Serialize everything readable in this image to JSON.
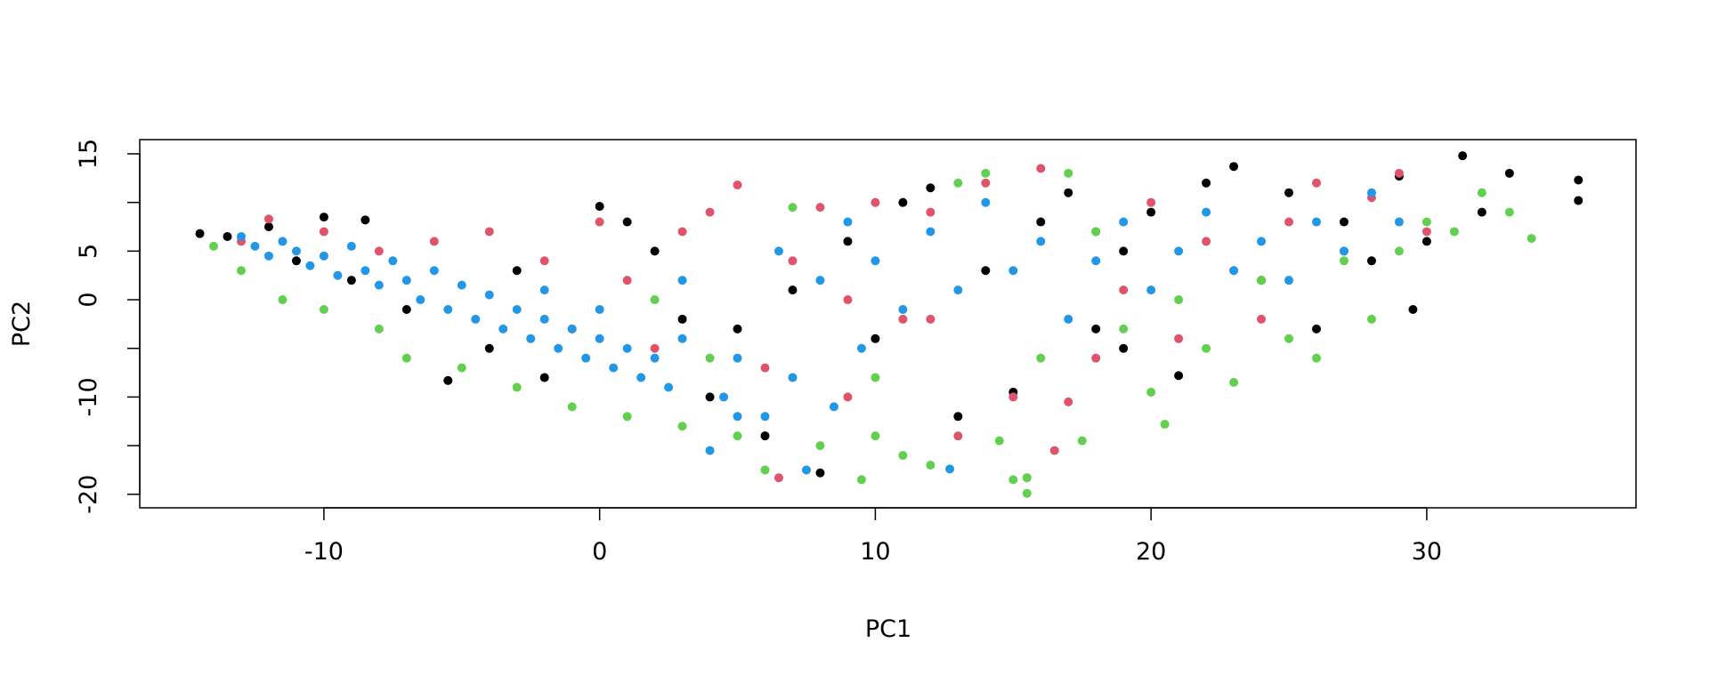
{
  "chart_data": {
    "type": "scatter",
    "xlabel": "PC1",
    "ylabel": "PC2",
    "xlim": [
      -16.68,
      37.59
    ],
    "ylim": [
      -21.39,
      16.46
    ],
    "xticks": [
      -10,
      0,
      10,
      20,
      30
    ],
    "yticks": [
      -20,
      -15,
      -10,
      -5,
      0,
      5,
      10,
      15
    ],
    "series": [
      {
        "color": "#000000",
        "x": [
          -14.5,
          -13.5,
          -12,
          -10,
          -8.5,
          -11,
          -9,
          -7,
          -5.5,
          -4,
          -2,
          0,
          1,
          2,
          3,
          4,
          5,
          6,
          7,
          8,
          9,
          10,
          11,
          12,
          13,
          14,
          15,
          16,
          17,
          18,
          19,
          20,
          21,
          22,
          23,
          24,
          25,
          26,
          27,
          28,
          29,
          29.5,
          30,
          31.3,
          32,
          33,
          35.5,
          35.5,
          -3,
          19
        ],
        "values": [
          6.8,
          6.5,
          7.5,
          8.5,
          8.2,
          4,
          2,
          -1,
          -8.3,
          -5,
          -8,
          9.6,
          8,
          5,
          -2,
          -10,
          -3,
          -14,
          1,
          -17.8,
          6,
          -4,
          10,
          11.5,
          -12,
          3,
          -9.5,
          8,
          11,
          -3,
          5,
          9,
          -7.8,
          12,
          13.7,
          2,
          11,
          -3,
          8,
          4,
          12.7,
          -1,
          6,
          14.8,
          9,
          13,
          12.3,
          10.2,
          3,
          -5
        ]
      },
      {
        "color": "#DF536B",
        "x": [
          -13,
          -12,
          -10,
          -8,
          -6,
          -4,
          -2,
          -1,
          0,
          1,
          2,
          3,
          4,
          5,
          6,
          6.5,
          7,
          8,
          9,
          10,
          11,
          12,
          13,
          14,
          15,
          15.5,
          16,
          16.5,
          17,
          18,
          19,
          20,
          21,
          22,
          23,
          24,
          25,
          26,
          27,
          28,
          29,
          30,
          12,
          9,
          18
        ],
        "values": [
          6,
          8.3,
          7,
          5,
          6,
          7,
          4,
          -3,
          8,
          2,
          -5,
          7,
          9,
          11.8,
          -7,
          -18.3,
          4,
          9.5,
          -10,
          10,
          -2,
          9,
          -14,
          12,
          -10,
          -18.3,
          13.5,
          -15.5,
          -10.5,
          7,
          1,
          10,
          -4,
          6,
          3,
          -2,
          8,
          12,
          5,
          10.5,
          13,
          7,
          -2,
          0,
          -6
        ]
      },
      {
        "color": "#61D04F",
        "x": [
          -14,
          -13,
          -11.5,
          -10,
          -8,
          -7,
          -5,
          -3,
          -1,
          1,
          3,
          5,
          6,
          7,
          8,
          9.5,
          10,
          11,
          12,
          13,
          14,
          14.5,
          15,
          15.5,
          15.5,
          16,
          17,
          17.5,
          18,
          19,
          20,
          20.5,
          21,
          22,
          23,
          24,
          25,
          26,
          27,
          28,
          29,
          30,
          31,
          32,
          33,
          33.8,
          2,
          4,
          10
        ],
        "values": [
          5.5,
          3,
          0,
          -1,
          -3,
          -6,
          -7,
          -9,
          -11,
          -12,
          -13,
          -14,
          -17.5,
          9.5,
          -15,
          -18.5,
          -14,
          -16,
          -17,
          12,
          13,
          -14.5,
          -18.5,
          -19.9,
          -18.3,
          -6,
          13,
          -14.5,
          7,
          -3,
          -9.5,
          -12.8,
          0,
          -5,
          -8.5,
          2,
          -4,
          -6,
          4,
          -2,
          5,
          8,
          7,
          11,
          9,
          6.3,
          0,
          -6,
          -8
        ]
      },
      {
        "color": "#2297E6",
        "x": [
          -13,
          -12.5,
          -12,
          -11.5,
          -11,
          -10.5,
          -10,
          -9.5,
          -9,
          -8.5,
          -8,
          -7.5,
          -7,
          -6.5,
          -6,
          -5.5,
          -5,
          -4.5,
          -4,
          -3.5,
          -3,
          -2.5,
          -2,
          -1.5,
          -1,
          -0.5,
          0,
          0.5,
          1,
          1.5,
          2,
          2.5,
          3,
          4,
          4.5,
          5,
          6,
          6.5,
          7,
          7.5,
          8,
          8.5,
          9,
          9.5,
          10,
          11,
          12,
          12.7,
          13,
          14,
          15,
          16,
          17,
          18,
          19,
          20,
          21,
          22,
          23,
          24,
          25,
          26,
          27,
          28,
          29,
          -2,
          0,
          3,
          5
        ],
        "values": [
          6.5,
          5.5,
          4.5,
          6,
          5,
          3.5,
          4.5,
          2.5,
          5.5,
          3,
          1.5,
          4,
          2,
          0,
          3,
          -1,
          1.5,
          -2,
          0.5,
          -3,
          -1,
          -4,
          -2,
          -5,
          -3,
          -6,
          -4,
          -7,
          -5,
          -8,
          -6,
          -9,
          -4,
          -15.5,
          -10,
          -6,
          -12,
          5,
          -8,
          -17.5,
          2,
          -11,
          8,
          -5,
          4,
          -1,
          7,
          -17.4,
          1,
          10,
          3,
          6,
          -2,
          4,
          8,
          1,
          5,
          9,
          3,
          6,
          2,
          8,
          5,
          11,
          8,
          1,
          -1,
          2,
          -12
        ]
      }
    ]
  }
}
